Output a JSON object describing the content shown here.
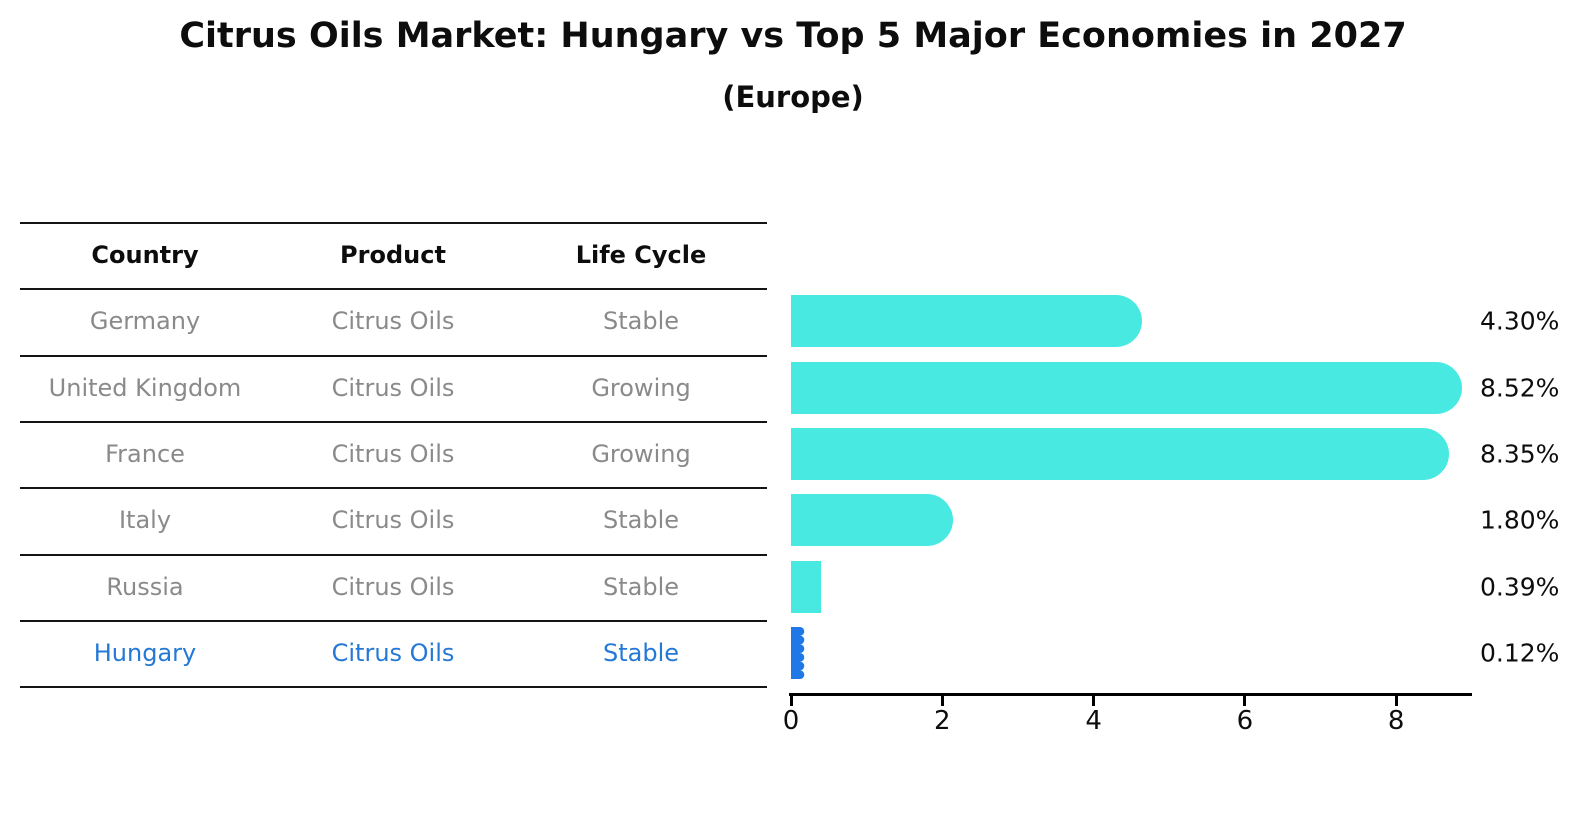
{
  "title": "Citrus Oils Market: Hungary vs Top 5 Major Economies in 2027",
  "subtitle": "(Europe)",
  "colors": {
    "bar": "#48e9e1",
    "highlight_bar": "#1e78e6",
    "highlight_text": "#2478d6",
    "table_text": "#8a8a8a",
    "header_text": "#0d0d0d",
    "axis": "#000000"
  },
  "table": {
    "columns": [
      "Country",
      "Product",
      "Life Cycle"
    ],
    "rows": [
      {
        "country": "Germany",
        "product": "Citrus Oils",
        "life_cycle": "Stable",
        "highlight": false
      },
      {
        "country": "United Kingdom",
        "product": "Citrus Oils",
        "life_cycle": "Growing",
        "highlight": false
      },
      {
        "country": "France",
        "product": "Citrus Oils",
        "life_cycle": "Growing",
        "highlight": false
      },
      {
        "country": "Italy",
        "product": "Citrus Oils",
        "life_cycle": "Stable",
        "highlight": false
      },
      {
        "country": "Russia",
        "product": "Citrus Oils",
        "life_cycle": "Stable",
        "highlight": false
      },
      {
        "country": "Hungary",
        "product": "Citrus Oils",
        "life_cycle": "Stable",
        "highlight": true
      }
    ]
  },
  "chart_data": {
    "type": "bar",
    "orientation": "horizontal",
    "title": "Citrus Oils Market: Hungary vs Top 5 Major Economies in 2027",
    "subtitle": "(Europe)",
    "categories": [
      "Germany",
      "United Kingdom",
      "France",
      "Italy",
      "Russia",
      "Hungary"
    ],
    "values": [
      4.3,
      8.52,
      8.35,
      1.8,
      0.39,
      0.12
    ],
    "labels": [
      "4.30%",
      "8.52%",
      "8.35%",
      "1.80%",
      "0.39%",
      "0.12%"
    ],
    "xlabel": "",
    "ylabel": "",
    "xlim": [
      0,
      9
    ],
    "xticks": [
      0,
      2,
      4,
      6,
      8
    ],
    "grid": false,
    "legend": false,
    "highlight_category": "Hungary",
    "value_suffix": "%"
  }
}
